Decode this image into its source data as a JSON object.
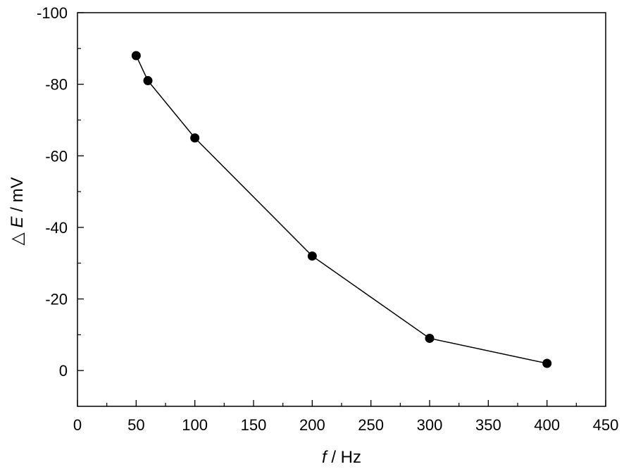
{
  "chart_data": {
    "type": "line",
    "title": "",
    "xlabel": {
      "symbol": "f",
      "unit": "/ Hz"
    },
    "ylabel": {
      "symbol": "E",
      "prefix": "△",
      "unit": "/ mV"
    },
    "xlim": [
      0,
      450
    ],
    "ylim": [
      10,
      -100
    ],
    "y_inverted": true,
    "x_ticks": [
      0,
      50,
      100,
      150,
      200,
      250,
      300,
      350,
      400,
      450
    ],
    "y_ticks": [
      0,
      -20,
      -40,
      -60,
      -80,
      -100
    ],
    "x_tick_labels": [
      "0",
      "50",
      "100",
      "150",
      "200",
      "250",
      "300",
      "350",
      "400",
      "450"
    ],
    "y_tick_labels": [
      "0",
      "-20",
      "-40",
      "-60",
      "-80",
      "-100"
    ],
    "grid": false,
    "legend": "none",
    "series": [
      {
        "x": [
          50,
          60,
          100,
          200,
          300,
          400
        ],
        "y": [
          -88,
          -81,
          -65,
          -32,
          -9,
          -2
        ],
        "color": "#000000",
        "marker": "circle"
      }
    ]
  }
}
